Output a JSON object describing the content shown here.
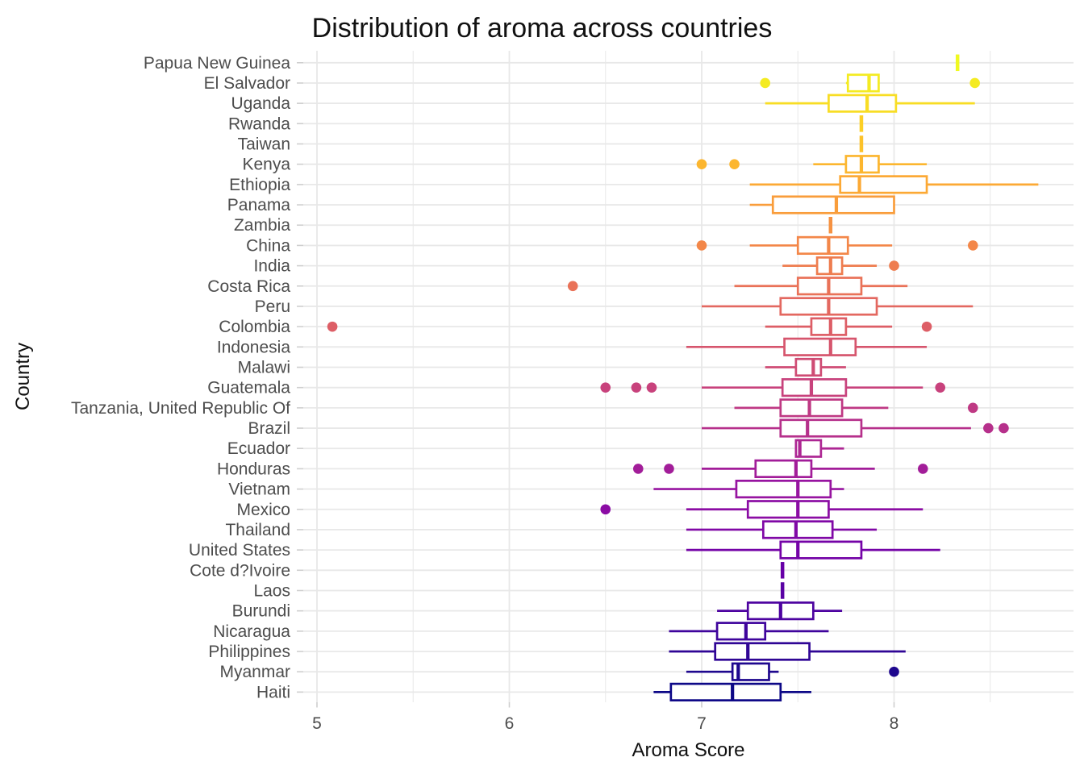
{
  "title": "Distribution of aroma across countries",
  "x_axis": {
    "label": "Aroma Score",
    "tick_labels": [
      "5",
      "6",
      "7",
      "8"
    ]
  },
  "y_axis": {
    "label": "Country"
  },
  "colors": {
    "background": "#ffffff",
    "gridline": "#e8e8e8",
    "tick_mark": "#cfcfcf",
    "axis_text": "#4d4d4d",
    "title_text": "#111111",
    "box_fill": "#ffffff"
  },
  "chart_data": {
    "type": "boxplot",
    "orientation": "horizontal",
    "title": "Distribution of aroma across countries",
    "xlabel": "Aroma Score",
    "ylabel": "Country",
    "xlim": [
      4.93,
      8.95
    ],
    "x_major_ticks": [
      5,
      6,
      7,
      8
    ],
    "x_minor_gridlines": [
      5.5,
      6.5,
      7.5,
      8.5
    ],
    "grid": true,
    "legend": "none",
    "palette": "plasma, yellow (top) to dark blue (bottom)",
    "series": [
      {
        "country": "Papua New Guinea",
        "color": "#f0f921",
        "whisker_low": 8.33,
        "q1": 8.33,
        "median": 8.33,
        "q3": 8.33,
        "whisker_high": 8.33,
        "outliers": []
      },
      {
        "country": "El Salvador",
        "color": "#f4eb22",
        "whisker_low": 7.75,
        "q1": 7.76,
        "median": 7.87,
        "q3": 7.92,
        "whisker_high": 7.92,
        "outliers": [
          7.33,
          8.42
        ]
      },
      {
        "country": "Uganda",
        "color": "#f8dd24",
        "whisker_low": 7.33,
        "q1": 7.66,
        "median": 7.86,
        "q3": 8.01,
        "whisker_high": 8.42,
        "outliers": []
      },
      {
        "country": "Rwanda",
        "color": "#fccf25",
        "whisker_low": 7.83,
        "q1": 7.83,
        "median": 7.83,
        "q3": 7.83,
        "whisker_high": 7.83,
        "outliers": []
      },
      {
        "country": "Taiwan",
        "color": "#fcc22a",
        "whisker_low": 7.83,
        "q1": 7.83,
        "median": 7.83,
        "q3": 7.83,
        "whisker_high": 7.83,
        "outliers": []
      },
      {
        "country": "Kenya",
        "color": "#fcb62f",
        "whisker_low": 7.58,
        "q1": 7.75,
        "median": 7.83,
        "q3": 7.92,
        "whisker_high": 8.17,
        "outliers": [
          7.0,
          7.17
        ]
      },
      {
        "country": "Ethiopia",
        "color": "#fca935",
        "whisker_low": 7.25,
        "q1": 7.72,
        "median": 7.82,
        "q3": 8.17,
        "whisker_high": 8.75,
        "outliers": []
      },
      {
        "country": "Panama",
        "color": "#f99d3b",
        "whisker_low": 7.25,
        "q1": 7.37,
        "median": 7.7,
        "q3": 8.0,
        "whisker_high": 8.0,
        "outliers": []
      },
      {
        "country": "Zambia",
        "color": "#f69242",
        "whisker_low": 7.67,
        "q1": 7.67,
        "median": 7.67,
        "q3": 7.67,
        "whisker_high": 7.67,
        "outliers": []
      },
      {
        "country": "China",
        "color": "#f38749",
        "whisker_low": 7.25,
        "q1": 7.5,
        "median": 7.66,
        "q3": 7.76,
        "whisker_high": 7.99,
        "outliers": [
          7.0,
          8.41
        ]
      },
      {
        "country": "India",
        "color": "#ee7d50",
        "whisker_low": 7.42,
        "q1": 7.6,
        "median": 7.67,
        "q3": 7.73,
        "whisker_high": 7.91,
        "outliers": [
          8.0
        ]
      },
      {
        "country": "Costa Rica",
        "color": "#e97258",
        "whisker_low": 7.17,
        "q1": 7.5,
        "median": 7.66,
        "q3": 7.83,
        "whisker_high": 8.07,
        "outliers": [
          6.33
        ]
      },
      {
        "country": "Peru",
        "color": "#e36860",
        "whisker_low": 7.0,
        "q1": 7.41,
        "median": 7.66,
        "q3": 7.91,
        "whisker_high": 8.41,
        "outliers": []
      },
      {
        "country": "Colombia",
        "color": "#dd5e66",
        "whisker_low": 7.33,
        "q1": 7.57,
        "median": 7.67,
        "q3": 7.75,
        "whisker_high": 7.99,
        "outliers": [
          5.08,
          8.17
        ]
      },
      {
        "country": "Indonesia",
        "color": "#d6556d",
        "whisker_low": 6.92,
        "q1": 7.43,
        "median": 7.67,
        "q3": 7.8,
        "whisker_high": 8.17,
        "outliers": []
      },
      {
        "country": "Malawi",
        "color": "#cf4c74",
        "whisker_low": 7.33,
        "q1": 7.49,
        "median": 7.58,
        "q3": 7.62,
        "whisker_high": 7.75,
        "outliers": []
      },
      {
        "country": "Guatemala",
        "color": "#c8427c",
        "whisker_low": 7.0,
        "q1": 7.42,
        "median": 7.57,
        "q3": 7.75,
        "whisker_high": 8.15,
        "outliers": [
          6.5,
          6.66,
          6.74,
          8.24
        ]
      },
      {
        "country": "Tanzania, United Republic Of",
        "color": "#bf3984",
        "whisker_low": 7.17,
        "q1": 7.41,
        "median": 7.56,
        "q3": 7.73,
        "whisker_high": 7.97,
        "outliers": [
          8.41
        ]
      },
      {
        "country": "Brazil",
        "color": "#b6308b",
        "whisker_low": 7.0,
        "q1": 7.41,
        "median": 7.55,
        "q3": 7.83,
        "whisker_high": 8.4,
        "outliers": [
          8.49,
          8.57
        ]
      },
      {
        "country": "Ecuador",
        "color": "#ad2693",
        "whisker_low": 7.49,
        "q1": 7.49,
        "median": 7.51,
        "q3": 7.62,
        "whisker_high": 7.74,
        "outliers": []
      },
      {
        "country": "Honduras",
        "color": "#a21d99",
        "whisker_low": 7.0,
        "q1": 7.28,
        "median": 7.49,
        "q3": 7.57,
        "whisker_high": 7.9,
        "outliers": [
          6.67,
          6.83,
          8.15
        ]
      },
      {
        "country": "Vietnam",
        "color": "#9714a0",
        "whisker_low": 6.75,
        "q1": 7.18,
        "median": 7.5,
        "q3": 7.67,
        "whisker_high": 7.74,
        "outliers": []
      },
      {
        "country": "Mexico",
        "color": "#8b0ca4",
        "whisker_low": 6.92,
        "q1": 7.24,
        "median": 7.5,
        "q3": 7.66,
        "whisker_high": 8.15,
        "outliers": [
          6.5
        ]
      },
      {
        "country": "Thailand",
        "color": "#8008a6",
        "whisker_low": 6.92,
        "q1": 7.32,
        "median": 7.49,
        "q3": 7.68,
        "whisker_high": 7.91,
        "outliers": []
      },
      {
        "country": "United States",
        "color": "#7403a7",
        "whisker_low": 6.92,
        "q1": 7.41,
        "median": 7.5,
        "q3": 7.83,
        "whisker_high": 8.24,
        "outliers": []
      },
      {
        "country": "Cote d?Ivoire",
        "color": "#6700a7",
        "whisker_low": 7.42,
        "q1": 7.42,
        "median": 7.42,
        "q3": 7.42,
        "whisker_high": 7.42,
        "outliers": []
      },
      {
        "country": "Laos",
        "color": "#5a02a4",
        "whisker_low": 7.42,
        "q1": 7.42,
        "median": 7.42,
        "q3": 7.42,
        "whisker_high": 7.42,
        "outliers": []
      },
      {
        "country": "Burundi",
        "color": "#4d03a0",
        "whisker_low": 7.08,
        "q1": 7.24,
        "median": 7.41,
        "q3": 7.58,
        "whisker_high": 7.73,
        "outliers": []
      },
      {
        "country": "Nicaragua",
        "color": "#3f049c",
        "whisker_low": 6.83,
        "q1": 7.08,
        "median": 7.23,
        "q3": 7.33,
        "whisker_high": 7.66,
        "outliers": []
      },
      {
        "country": "Philippines",
        "color": "#2f0595",
        "whisker_low": 6.83,
        "q1": 7.07,
        "median": 7.24,
        "q3": 7.56,
        "whisker_high": 8.06,
        "outliers": []
      },
      {
        "country": "Myanmar",
        "color": "#1e078e",
        "whisker_low": 6.92,
        "q1": 7.16,
        "median": 7.19,
        "q3": 7.35,
        "whisker_high": 7.4,
        "outliers": [
          8.0
        ]
      },
      {
        "country": "Haiti",
        "color": "#0d0887",
        "whisker_low": 6.75,
        "q1": 6.84,
        "median": 7.16,
        "q3": 7.41,
        "whisker_high": 7.57,
        "outliers": []
      }
    ]
  }
}
